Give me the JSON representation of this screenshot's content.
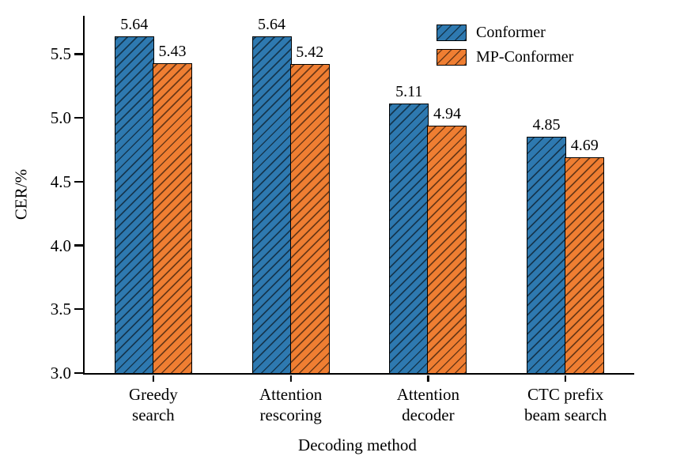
{
  "figure": {
    "background": "#ffffff"
  },
  "chart_data": {
    "type": "bar",
    "title": "",
    "xlabel": "Decoding method",
    "ylabel": "CER/%",
    "categories": [
      "Greedy\nsearch",
      "Attention\nrescoring",
      "Attention\ndecoder",
      "CTC prefix\nbeam search"
    ],
    "series": [
      {
        "name": "Conformer",
        "color": "#2e79b0",
        "values": [
          5.64,
          5.64,
          5.11,
          4.85
        ]
      },
      {
        "name": "MP-Conformer",
        "color": "#ef7e32",
        "values": [
          5.43,
          5.42,
          4.94,
          4.69
        ]
      }
    ],
    "ylim": [
      3.0,
      5.8
    ],
    "yticks": [
      3.0,
      3.5,
      4.0,
      4.5,
      5.0,
      5.5
    ],
    "grid": false,
    "legend_position": "upper-right-inside",
    "hatch": "/",
    "value_label_decimals": 2,
    "ytick_decimals": 1
  }
}
